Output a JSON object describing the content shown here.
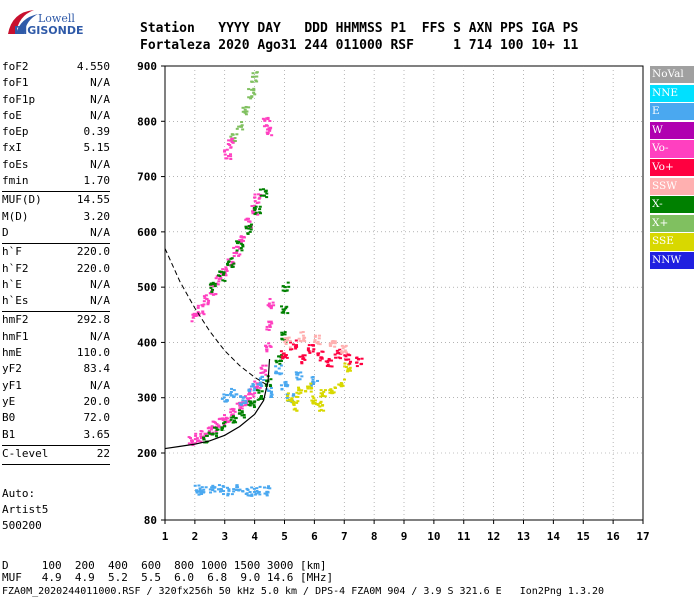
{
  "logo": {
    "line1": "Lowell",
    "line2": "DIGISONDE"
  },
  "header": {
    "line1": "Station   YYYY DAY   DDD HHMMSS P1  FFS S AXN PPS IGA PS",
    "line2": "Fortaleza 2020 Ago31 244 011000 RSF     1 714 100 10+ 11"
  },
  "params": [
    {
      "label": "foF2",
      "value": "4.550"
    },
    {
      "label": "foF1",
      "value": "N/A"
    },
    {
      "label": "foF1p",
      "value": "N/A"
    },
    {
      "label": "foE",
      "value": "N/A"
    },
    {
      "label": "foEp",
      "value": "0.39"
    },
    {
      "label": "fxI",
      "value": "5.15"
    },
    {
      "label": "foEs",
      "value": "N/A"
    },
    {
      "label": "fmin",
      "value": "1.70"
    },
    {
      "sep": true
    },
    {
      "label": "MUF(D)",
      "value": "14.55"
    },
    {
      "label": "M(D)",
      "value": "3.20"
    },
    {
      "label": "D",
      "value": "N/A"
    },
    {
      "sep": true
    },
    {
      "label": "h`F",
      "value": "220.0"
    },
    {
      "label": "h`F2",
      "value": "220.0"
    },
    {
      "label": "h`E",
      "value": "N/A"
    },
    {
      "label": "h`Es",
      "value": "N/A"
    },
    {
      "sep": true
    },
    {
      "label": "hmF2",
      "value": "292.8"
    },
    {
      "label": "hmF1",
      "value": "N/A"
    },
    {
      "label": "hmE",
      "value": "110.0"
    },
    {
      "label": "yF2",
      "value": "83.4"
    },
    {
      "label": "yF1",
      "value": "N/A"
    },
    {
      "label": "yE",
      "value": "20.0"
    },
    {
      "label": "B0",
      "value": "72.0"
    },
    {
      "label": "B1",
      "value": "3.65"
    },
    {
      "sep": true
    },
    {
      "label": "C-level",
      "value": "22"
    },
    {
      "sep": true
    }
  ],
  "auto": {
    "line1": "Auto:",
    "line2": "Artist5",
    "line3": "500200"
  },
  "legend": [
    {
      "label": "NoVal",
      "color": "#a0a0a0"
    },
    {
      "label": "NNE",
      "color": "#00e0ff"
    },
    {
      "label": "E",
      "color": "#4aa8f0"
    },
    {
      "label": "W",
      "color": "#b000b0"
    },
    {
      "label": "Vo-",
      "color": "#ff40c0"
    },
    {
      "label": "Vo+",
      "color": "#ff0040"
    },
    {
      "label": "SSW",
      "color": "#ffb0b0"
    },
    {
      "label": "X-",
      "color": "#008000"
    },
    {
      "label": "X+",
      "color": "#80c060"
    },
    {
      "label": "SSE",
      "color": "#d8d800"
    },
    {
      "label": "NNW",
      "color": "#2020e0"
    }
  ],
  "footer": {
    "line1": "D     100  200  400  600  800 1000 1500 3000 [km]",
    "line2": "MUF   4.9  4.9  5.2  5.5  6.0  6.8  9.0 14.6 [MHz]",
    "file": "FZA0M_2020244011000.RSF / 320fx256h 50 kHz 5.0 km / DPS-4 FZA0M 904 / 3.9 S 321.6 E   Ion2Png 1.3.20"
  },
  "chart_data": {
    "type": "scatter",
    "title": "",
    "xlabel": "",
    "ylabel": "",
    "xlim": [
      1,
      17
    ],
    "ylim": [
      80,
      900
    ],
    "x_ticks": [
      1,
      2,
      3,
      4,
      5,
      6,
      7,
      8,
      9,
      10,
      11,
      12,
      13,
      14,
      15,
      16,
      17
    ],
    "y_ticks": [
      80,
      200,
      300,
      400,
      500,
      600,
      700,
      800,
      900
    ],
    "grid": "dotted",
    "clusters": [
      {
        "name": "O-trace lower",
        "color": "#ff40c0",
        "points": [
          [
            1.9,
            222
          ],
          [
            2.1,
            226
          ],
          [
            2.3,
            232
          ],
          [
            2.5,
            240
          ],
          [
            2.7,
            248
          ],
          [
            2.9,
            256
          ],
          [
            3.1,
            264
          ],
          [
            3.3,
            272
          ],
          [
            3.5,
            282
          ],
          [
            3.7,
            294
          ],
          [
            3.9,
            308
          ],
          [
            4.1,
            325
          ],
          [
            4.3,
            350
          ],
          [
            4.45,
            390
          ],
          [
            4.5,
            430
          ],
          [
            4.55,
            470
          ]
        ]
      },
      {
        "name": "X-trace lower",
        "color": "#008000",
        "points": [
          [
            2.4,
            228
          ],
          [
            2.7,
            238
          ],
          [
            3.0,
            248
          ],
          [
            3.3,
            260
          ],
          [
            3.6,
            272
          ],
          [
            3.9,
            288
          ],
          [
            4.2,
            305
          ],
          [
            4.5,
            330
          ],
          [
            4.8,
            370
          ],
          [
            4.95,
            410
          ],
          [
            5.0,
            460
          ],
          [
            5.05,
            500
          ]
        ]
      },
      {
        "name": "O-trace upper",
        "color": "#ff40c0",
        "points": [
          [
            2.0,
            445
          ],
          [
            2.2,
            460
          ],
          [
            2.4,
            478
          ],
          [
            2.6,
            495
          ],
          [
            2.8,
            512
          ],
          [
            3.0,
            528
          ],
          [
            3.2,
            545
          ],
          [
            3.4,
            565
          ],
          [
            3.6,
            590
          ],
          [
            3.8,
            615
          ],
          [
            4.0,
            640
          ],
          [
            4.1,
            660
          ]
        ]
      },
      {
        "name": "X-trace upper",
        "color": "#008000",
        "points": [
          [
            2.6,
            500
          ],
          [
            2.9,
            520
          ],
          [
            3.2,
            545
          ],
          [
            3.5,
            575
          ],
          [
            3.8,
            605
          ],
          [
            4.1,
            640
          ],
          [
            4.3,
            670
          ]
        ]
      },
      {
        "name": "Spread E-west",
        "color": "#4aa8f0",
        "points": [
          [
            3.0,
            300
          ],
          [
            3.3,
            310
          ],
          [
            3.6,
            295
          ],
          [
            3.9,
            320
          ],
          [
            4.2,
            330
          ],
          [
            4.5,
            310
          ],
          [
            5.0,
            320
          ],
          [
            5.5,
            340
          ],
          [
            6.0,
            330
          ],
          [
            4.8,
            350
          ],
          [
            5.2,
            300
          ]
        ]
      },
      {
        "name": "Spread SSE",
        "color": "#d8d800",
        "points": [
          [
            5.2,
            300
          ],
          [
            5.5,
            310
          ],
          [
            5.8,
            320
          ],
          [
            6.0,
            295
          ],
          [
            6.3,
            305
          ],
          [
            6.6,
            315
          ],
          [
            6.9,
            325
          ],
          [
            7.1,
            355
          ],
          [
            5.4,
            285
          ],
          [
            6.2,
            285
          ]
        ]
      },
      {
        "name": "Spread Vo+",
        "color": "#ff0040",
        "points": [
          [
            5.0,
            380
          ],
          [
            5.3,
            395
          ],
          [
            5.6,
            370
          ],
          [
            5.9,
            390
          ],
          [
            6.2,
            375
          ],
          [
            6.5,
            365
          ],
          [
            6.8,
            380
          ],
          [
            7.1,
            370
          ],
          [
            7.5,
            365
          ]
        ]
      },
      {
        "name": "Spread SSW",
        "color": "#ffb0b0",
        "points": [
          [
            5.1,
            400
          ],
          [
            5.6,
            410
          ],
          [
            6.1,
            405
          ],
          [
            6.6,
            395
          ],
          [
            7.0,
            390
          ]
        ]
      },
      {
        "name": "Sporadic low",
        "color": "#4aa8f0",
        "points": [
          [
            2.1,
            133
          ],
          [
            2.3,
            135
          ],
          [
            2.6,
            133
          ],
          [
            2.9,
            135
          ],
          [
            3.2,
            133
          ],
          [
            3.5,
            135
          ],
          [
            3.8,
            132
          ],
          [
            4.1,
            134
          ],
          [
            4.4,
            133
          ]
        ]
      },
      {
        "name": "Spikes high",
        "color": "#80c060",
        "points": [
          [
            3.3,
            770
          ],
          [
            3.5,
            790
          ],
          [
            3.7,
            820
          ],
          [
            3.9,
            850
          ],
          [
            4.0,
            880
          ]
        ]
      },
      {
        "name": "Spikes high W",
        "color": "#ff40c0",
        "points": [
          [
            3.1,
            740
          ],
          [
            3.2,
            760
          ],
          [
            4.4,
            800
          ],
          [
            4.5,
            780
          ]
        ]
      }
    ],
    "profile_curve": [
      [
        1.0,
        208
      ],
      [
        1.5,
        212
      ],
      [
        2.0,
        216
      ],
      [
        2.5,
        222
      ],
      [
        3.0,
        232
      ],
      [
        3.5,
        248
      ],
      [
        4.0,
        270
      ],
      [
        4.3,
        295
      ],
      [
        4.45,
        330
      ],
      [
        4.5,
        370
      ]
    ],
    "muf_curve": [
      [
        1.0,
        570
      ],
      [
        1.5,
        510
      ],
      [
        2.0,
        462
      ],
      [
        2.5,
        420
      ],
      [
        3.0,
        385
      ],
      [
        3.5,
        358
      ],
      [
        4.0,
        337
      ],
      [
        4.5,
        320
      ]
    ]
  }
}
